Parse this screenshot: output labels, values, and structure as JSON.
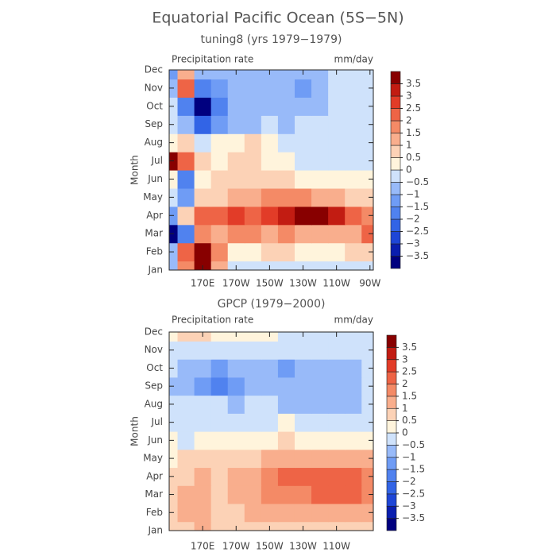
{
  "title": "Equatorial Pacific Ocean (5S−5N)",
  "chart_data": [
    {
      "type": "heatmap",
      "subtitle": "tuning8 (yrs 1979−1979)",
      "left_label": "Precipitation rate",
      "right_label": "mm/day",
      "y_label": "Month",
      "categories": [
        "Jan",
        "Feb",
        "Mar",
        "Apr",
        "May",
        "Jun",
        "Jul",
        "Aug",
        "Sep",
        "Oct",
        "Nov",
        "Dec"
      ],
      "x": [
        150,
        160,
        170,
        180,
        190,
        200,
        210,
        220,
        230,
        240,
        250,
        260,
        270
      ],
      "xlim": [
        150,
        272
      ],
      "xticks": [
        {
          "value": 170,
          "label": "170E"
        },
        {
          "value": 190,
          "label": "170W"
        },
        {
          "value": 210,
          "label": "150W"
        },
        {
          "value": 230,
          "label": "130W"
        },
        {
          "value": 250,
          "label": "110W"
        },
        {
          "value": 270,
          "label": "90W"
        }
      ],
      "values": [
        [
          -1,
          1.5,
          3.5,
          1,
          -0.5,
          -0.5,
          -0.5,
          -0.5,
          -0.5,
          -0.5,
          -0.5,
          -0.5,
          -0.5
        ],
        [
          -1,
          2,
          3.8,
          1.5,
          0,
          0,
          0.5,
          0.5,
          0,
          0,
          0,
          0.5,
          0.5
        ],
        [
          -3.8,
          -2,
          1.5,
          1,
          1.5,
          1.5,
          1,
          1.5,
          1,
          1,
          1,
          1,
          2
        ],
        [
          -1.5,
          0.5,
          2,
          2,
          2.5,
          2,
          2.5,
          3,
          3.8,
          3.8,
          3,
          2,
          1.5
        ],
        [
          -0.5,
          -1.5,
          0.5,
          0.5,
          1,
          1,
          1.5,
          1.5,
          1.5,
          1,
          1,
          0.5,
          0.5
        ],
        [
          0,
          -2,
          0,
          0.5,
          0.5,
          0.5,
          0.5,
          0.5,
          0,
          0,
          0,
          0,
          0
        ],
        [
          3.8,
          2,
          0.5,
          0,
          0.5,
          0.5,
          0,
          0,
          -0.5,
          -0.5,
          -0.5,
          -0.5,
          -0.5
        ],
        [
          0,
          0.5,
          -0.5,
          0,
          0,
          0.5,
          0,
          -0.5,
          -0.5,
          -0.5,
          -0.5,
          -0.5,
          -0.5
        ],
        [
          -0.5,
          -1,
          -2.5,
          -1.5,
          -1,
          -1,
          -0.5,
          -1,
          -0.5,
          -0.5,
          -0.5,
          -0.5,
          -0.5
        ],
        [
          -0.5,
          -2,
          -3.8,
          -2,
          -1,
          -1,
          -1,
          -1,
          -1,
          -1,
          -0.5,
          -0.5,
          -0.5
        ],
        [
          -1,
          2,
          -2,
          -1.5,
          -1,
          -1,
          -1,
          -1,
          -1.5,
          -1,
          -0.5,
          -0.5,
          -0.5
        ],
        [
          -1.5,
          1,
          -1,
          -1,
          -1,
          -1,
          -1,
          -1,
          -1,
          -1,
          -0.5,
          -0.5,
          -0.5
        ]
      ],
      "levels": [
        {
          "value": -3.5,
          "label": "−3.5"
        },
        {
          "value": -3,
          "label": "−3"
        },
        {
          "value": -2.5,
          "label": "−2.5"
        },
        {
          "value": -2,
          "label": "−2"
        },
        {
          "value": -1.5,
          "label": "−1.5"
        },
        {
          "value": -1,
          "label": "−1"
        },
        {
          "value": -0.5,
          "label": "−0.5"
        },
        0,
        0.5,
        1,
        1.5,
        2,
        2.5,
        3,
        3.5
      ],
      "colors": [
        "#00007f",
        "#0a1eaf",
        "#1e46d7",
        "#3264e6",
        "#5082ef",
        "#6f9cf5",
        "#98baf9",
        "#cfe2fb",
        "#fff4dc",
        "#fcd2b6",
        "#f9ae8d",
        "#f48a66",
        "#ee6446",
        "#e23c28",
        "#c21c12",
        "#880000"
      ]
    },
    {
      "type": "heatmap",
      "subtitle": "GPCP (1979−2000)",
      "left_label": "Precipitation rate",
      "right_label": "mm/day",
      "y_label": "Month",
      "categories": [
        "Jan",
        "Feb",
        "Mar",
        "Apr",
        "May",
        "Jun",
        "Jul",
        "Aug",
        "Sep",
        "Oct",
        "Nov",
        "Dec"
      ],
      "x": [
        150,
        160,
        170,
        180,
        190,
        200,
        210,
        220,
        230,
        240,
        250,
        260,
        270
      ],
      "xlim": [
        150,
        272
      ],
      "xticks": [
        {
          "value": 170,
          "label": "170E"
        },
        {
          "value": 190,
          "label": "170W"
        },
        {
          "value": 210,
          "label": "150W"
        },
        {
          "value": 230,
          "label": "130W"
        },
        {
          "value": 250,
          "label": "110W"
        }
      ],
      "values": [
        [
          0.5,
          0.5,
          1,
          0.5,
          0.5,
          0.5,
          0.5,
          0.5,
          0.5,
          0.5,
          0.5,
          0.5,
          0.5
        ],
        [
          0.5,
          1,
          1,
          0.5,
          0.5,
          1,
          1,
          1,
          1,
          1,
          1,
          1,
          1
        ],
        [
          0.5,
          1,
          1,
          0.5,
          1,
          1,
          1.5,
          1.5,
          1.5,
          2,
          2,
          2,
          1.5
        ],
        [
          0.5,
          0.5,
          1,
          0.5,
          1,
          1,
          1.5,
          2,
          2,
          2,
          2,
          2,
          1.5
        ],
        [
          0,
          0.5,
          0.5,
          0.5,
          0.5,
          0.5,
          1,
          1,
          1,
          1,
          1,
          1,
          1
        ],
        [
          0,
          -0.5,
          0,
          0,
          0,
          0,
          0,
          0.5,
          0,
          0,
          0,
          0,
          0
        ],
        [
          -0.5,
          -0.5,
          -0.5,
          -0.5,
          -0.5,
          -0.5,
          -0.5,
          0,
          -0.5,
          -0.5,
          -0.5,
          -0.5,
          -0.5
        ],
        [
          -0.5,
          -0.5,
          -0.5,
          -0.5,
          -1,
          -0.5,
          -0.5,
          -1,
          -1,
          -1,
          -1,
          -1,
          -0.5
        ],
        [
          -1,
          -1,
          -1.5,
          -2,
          -1.5,
          -1,
          -1,
          -1,
          -1,
          -1,
          -1,
          -1,
          -0.5
        ],
        [
          -0.5,
          -1,
          -1,
          -1.5,
          -1,
          -1,
          -1,
          -1.5,
          -1,
          -1,
          -1,
          -1,
          -0.5
        ],
        [
          -0.5,
          -0.5,
          -0.5,
          -0.5,
          -0.5,
          -0.5,
          -0.5,
          -0.5,
          -0.5,
          -0.5,
          -0.5,
          -0.5,
          -0.5
        ],
        [
          0,
          0.5,
          0.5,
          0,
          0,
          0,
          0,
          -0.5,
          -0.5,
          -0.5,
          -0.5,
          -0.5,
          -0.5
        ]
      ],
      "levels": [
        {
          "value": -3.5,
          "label": "−3.5"
        },
        {
          "value": -3,
          "label": "−3"
        },
        {
          "value": -2.5,
          "label": "−2.5"
        },
        {
          "value": -2,
          "label": "−2"
        },
        {
          "value": -1.5,
          "label": "−1.5"
        },
        {
          "value": -1,
          "label": "−1"
        },
        {
          "value": -0.5,
          "label": "−0.5"
        },
        0,
        0.5,
        1,
        1.5,
        2,
        2.5,
        3,
        3.5
      ],
      "colors": [
        "#00007f",
        "#0a1eaf",
        "#1e46d7",
        "#3264e6",
        "#5082ef",
        "#6f9cf5",
        "#98baf9",
        "#cfe2fb",
        "#fff4dc",
        "#fcd2b6",
        "#f9ae8d",
        "#f48a66",
        "#ee6446",
        "#e23c28",
        "#c21c12",
        "#880000"
      ]
    }
  ]
}
